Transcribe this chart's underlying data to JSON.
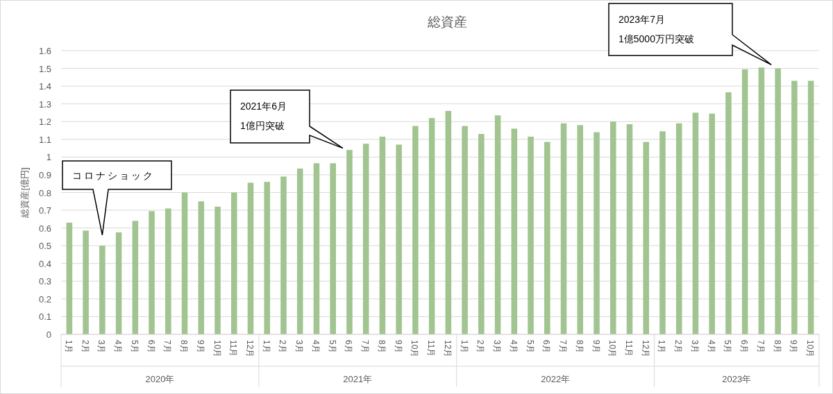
{
  "chart_data": {
    "type": "bar",
    "title": "総資産",
    "ylabel": "総資産[億円]",
    "categories": [
      "1月",
      "2月",
      "3月",
      "4月",
      "5月",
      "6月",
      "7月",
      "8月",
      "9月",
      "10月",
      "11月",
      "12月",
      "1月",
      "2月",
      "3月",
      "4月",
      "5月",
      "6月",
      "7月",
      "8月",
      "9月",
      "10月",
      "11月",
      "12月",
      "1月",
      "2月",
      "3月",
      "4月",
      "5月",
      "6月",
      "7月",
      "8月",
      "9月",
      "10月",
      "11月",
      "12月",
      "1月",
      "2月",
      "3月",
      "4月",
      "5月",
      "6月",
      "7月",
      "8月",
      "9月",
      "10月"
    ],
    "values": [
      0.63,
      0.585,
      0.5,
      0.575,
      0.64,
      0.695,
      0.71,
      0.8,
      0.75,
      0.72,
      0.8,
      0.855,
      0.86,
      0.89,
      0.935,
      0.965,
      0.965,
      1.04,
      1.075,
      1.115,
      1.07,
      1.175,
      1.22,
      1.26,
      1.175,
      1.13,
      1.235,
      1.16,
      1.115,
      1.085,
      1.19,
      1.18,
      1.14,
      1.2,
      1.185,
      1.085,
      1.145,
      1.19,
      1.25,
      1.245,
      1.365,
      1.495,
      1.505,
      1.5,
      1.43,
      1.43
    ],
    "color": "#a1c490",
    "ylim": [
      0,
      1.6
    ],
    "yticks": [
      0,
      0.1,
      0.2,
      0.3,
      0.4,
      0.5,
      0.6,
      0.7,
      0.8,
      0.9,
      1,
      1.1,
      1.2,
      1.3,
      1.4,
      1.5,
      1.6
    ],
    "grid": "y",
    "annotations": [
      "2020年",
      "2021年",
      "2022年",
      "2023年",
      "コロナショック",
      "2021年6月\n1億円突破",
      "2023年7月\n1億5000万円突破"
    ]
  }
}
